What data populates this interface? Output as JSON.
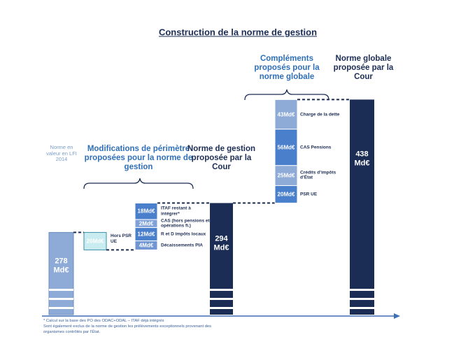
{
  "chart_data": {
    "type": "waterfall",
    "title": "Construction de la norme de gestion",
    "start": {
      "annotation": "Norme en valeur en LFI 2014",
      "value": 278,
      "value_label": "278 Md€",
      "color": "#8eaad6"
    },
    "excluded": {
      "label": "Hors PSR UE",
      "value": 20,
      "value_label": "20Md€",
      "color": "#c9ecf0"
    },
    "changes": {
      "title": "Modifications de périmètre proposées pour la norme de gestion",
      "categories": [
        "Décaissements PIA",
        "R et D impôts locaux",
        "CAS (hors pensions et opérations fi.)",
        "ITAF restant à intégrer*"
      ],
      "values": [
        4,
        12,
        2,
        18
      ],
      "value_labels": [
        "4Md€",
        "12Md€",
        "2Md€",
        "18Md€"
      ],
      "colors": [
        "#6f95d3",
        "#4a7fcc",
        "#7fa1d8",
        "#4a7fcc"
      ]
    },
    "total": {
      "annotation": "Norme de gestion proposée par la Cour",
      "value": 294,
      "value_label": "294 Md€",
      "color": "#1c2d55"
    },
    "complements": {
      "title": "Compléments proposés pour la norme globale",
      "categories": [
        "PSR UE",
        "Crédits d’impôts d’État",
        "CAS Pensions",
        "Charge de la dette"
      ],
      "values": [
        20,
        25,
        56,
        43
      ],
      "value_labels": [
        "20Md€",
        "25Md€",
        "56Md€",
        "43Md€"
      ],
      "colors": [
        "#4a7fcc",
        "#8eaad6",
        "#4a7fcc",
        "#8eaad6"
      ]
    },
    "global_total": {
      "annotation": "Norme globale proposée par la Cour",
      "value": 438,
      "value_label": "438 Md€",
      "color": "#1c2d55"
    },
    "footnotes": [
      "* Calcul sur la base des PO des ODAC+ODAL – ITAF  déjà intégrés",
      "Sont également exclus de la norme de gestion les prélèvements exceptionnels provenant des",
      "organismes contrôlés par l’État."
    ]
  }
}
